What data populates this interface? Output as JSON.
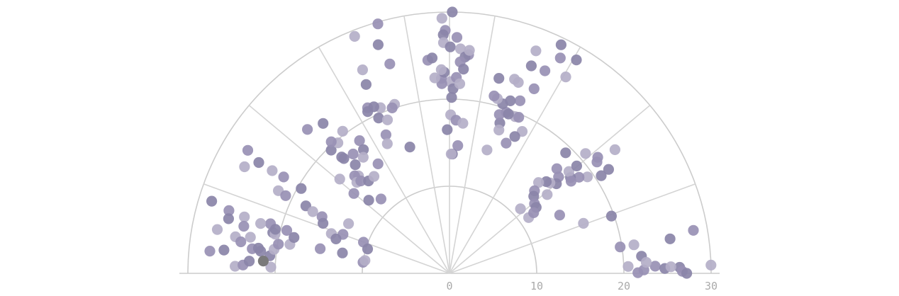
{
  "chart_data": {
    "type": "scatter",
    "coordinate_system": "polar-semicircle",
    "title": "",
    "xlabel": "",
    "ylabel": "",
    "radial_axis": {
      "range": [
        0,
        30
      ],
      "ticks": [
        "0",
        "10",
        "20",
        "30"
      ]
    },
    "angle_range_deg": [
      0,
      180
    ],
    "spokes_deg": [
      20,
      40,
      60,
      80,
      90,
      100,
      120,
      140,
      160
    ],
    "grid": true,
    "colors": {
      "point": "#9890b4",
      "point_dark": "#8a84a8",
      "point_light": "#b4afc8",
      "highlight": "#7a7a7a",
      "grid": "#cccccc",
      "tick_text": "#aaaaaa"
    },
    "series": [
      {
        "points": [
          [
            23.6,
            2.0
          ],
          [
            26.4,
            1.5
          ],
          [
            20.5,
            2.2
          ],
          [
            22.3,
            1.0
          ],
          [
            24.7,
            1.3
          ],
          [
            25.4,
            1.7
          ],
          [
            26.7,
            0.5
          ],
          [
            27.2,
            0.0
          ],
          [
            30.0,
            1.8
          ],
          [
            21.6,
            0.2
          ],
          [
            22.1,
            5.1
          ],
          [
            22.6,
            3.2
          ],
          [
            28.4,
            10.0
          ],
          [
            25.6,
            8.9
          ],
          [
            21.4,
            8.8
          ],
          [
            19.8,
            8.8
          ],
          [
            19.7,
            19.5
          ],
          [
            16.4,
            20.5
          ],
          [
            14.3,
            27.9
          ],
          [
            21.8,
            33.2
          ],
          [
            23.7,
            36.8
          ],
          [
            21.2,
            37.1
          ],
          [
            20.7,
            32.8
          ],
          [
            19.3,
            35.0
          ],
          [
            18.5,
            36.6
          ],
          [
            17.7,
            38.4
          ],
          [
            18.0,
            40.5
          ],
          [
            16.7,
            41.5
          ],
          [
            16.0,
            40.0
          ],
          [
            15.5,
            42.0
          ],
          [
            17.2,
            44.3
          ],
          [
            15.3,
            43.5
          ],
          [
            14.6,
            45.6
          ],
          [
            13.6,
            44.2
          ],
          [
            13.1,
            42.5
          ],
          [
            11.0,
            42.3
          ],
          [
            12.6,
            39.3
          ],
          [
            12.5,
            37.3
          ],
          [
            14.4,
            38.9
          ],
          [
            17.5,
            37.2
          ],
          [
            19.1,
            40.2
          ],
          [
            20.8,
            41.4
          ],
          [
            21.6,
            38.1
          ],
          [
            19.2,
            46.1
          ],
          [
            11.1,
            35.2
          ],
          [
            11.9,
            35.8
          ],
          [
            28.5,
            59.3
          ],
          [
            26.2,
            59.4
          ],
          [
            27.8,
            62.8
          ],
          [
            29.2,
            64.0
          ],
          [
            27.4,
            68.8
          ],
          [
            25.7,
            64.8
          ],
          [
            25.6,
            68.5
          ],
          [
            23.3,
            70.2
          ],
          [
            21.4,
            67.8
          ],
          [
            21.0,
            70.6
          ],
          [
            19.5,
            67.3
          ],
          [
            19.6,
            70.6
          ],
          [
            18.2,
            71.5
          ],
          [
            17.4,
            71.0
          ],
          [
            19.1,
            72.6
          ],
          [
            20.4,
            72.6
          ],
          [
            20.8,
            74.7
          ],
          [
            21.0,
            75.9
          ],
          [
            23.1,
            75.8
          ],
          [
            23.5,
            71.5
          ],
          [
            23.3,
            65.4
          ],
          [
            19.5,
            69.7
          ],
          [
            18.3,
            62.9
          ],
          [
            16.3,
            66.5
          ],
          [
            17.4,
            64.5
          ],
          [
            14.8,
            73.1
          ],
          [
            19.6,
            66.1
          ],
          [
            30.0,
            89.4
          ],
          [
            29.3,
            91.7
          ],
          [
            27.9,
            91.0
          ],
          [
            27.4,
            91.5
          ],
          [
            26.5,
            91.5
          ],
          [
            27.1,
            88.2
          ],
          [
            26.0,
            89.8
          ],
          [
            25.8,
            87.2
          ],
          [
            25.2,
            85.0
          ],
          [
            24.9,
            85.9
          ],
          [
            25.7,
            84.9
          ],
          [
            24.3,
            87.1
          ],
          [
            23.5,
            86.1
          ],
          [
            22.0,
            89.8
          ],
          [
            22.5,
            88.0
          ],
          [
            21.2,
            88.9
          ],
          [
            21.8,
            86.9
          ],
          [
            22.4,
            92.4
          ],
          [
            23.1,
            91.5
          ],
          [
            23.4,
            92.3
          ],
          [
            21.8,
            92.3
          ],
          [
            20.2,
            89.3
          ],
          [
            18.2,
            89.6
          ],
          [
            17.6,
            87.6
          ],
          [
            16.5,
            90.9
          ],
          [
            17.3,
            84.9
          ],
          [
            14.7,
            86.3
          ],
          [
            13.7,
            88.6
          ],
          [
            13.7,
            89.2
          ],
          [
            24.6,
            95.8
          ],
          [
            24.8,
            94.6
          ],
          [
            22.5,
            94.3
          ],
          [
            29.8,
            106.0
          ],
          [
            27.5,
            107.3
          ],
          [
            29.3,
            111.8
          ],
          [
            25.0,
            105.9
          ],
          [
            23.7,
            113.8
          ],
          [
            20.6,
            112.6
          ],
          [
            21.2,
            116.3
          ],
          [
            20.8,
            116.8
          ],
          [
            20.4,
            108.0
          ],
          [
            20.1,
            109.1
          ],
          [
            19.6,
            114.5
          ],
          [
            19.0,
            112.0
          ],
          [
            17.5,
            114.6
          ],
          [
            15.2,
            107.4
          ],
          [
            16.5,
            115.6
          ],
          [
            15.0,
            123.1
          ],
          [
            21.0,
            114.4
          ],
          [
            25.4,
            113.1
          ],
          [
            23.2,
            134.6
          ],
          [
            22.5,
            130.1
          ],
          [
            20.4,
            126.9
          ],
          [
            18.4,
            124.1
          ],
          [
            17.3,
            124.8
          ],
          [
            16.6,
            126.6
          ],
          [
            17.6,
            128.9
          ],
          [
            16.5,
            130.9
          ],
          [
            15.3,
            133.0
          ],
          [
            15.6,
            134.2
          ],
          [
            19.6,
            133.8
          ],
          [
            14.9,
            135.5
          ],
          [
            14.7,
            133.8
          ],
          [
            14.1,
            131.2
          ],
          [
            14.1,
            127.9
          ],
          [
            11.6,
            132.6
          ],
          [
            12.5,
            137.8
          ],
          [
            16.6,
            139.3
          ],
          [
            14.3,
            140.1
          ],
          [
            17.9,
            132.6
          ],
          [
            19.7,
            130.5
          ],
          [
            20.3,
            131.9
          ],
          [
            18.2,
            132.8
          ],
          [
            26.5,
            152.5
          ],
          [
            27.1,
            148.6
          ],
          [
            25.3,
            149.8
          ],
          [
            23.5,
            149.9
          ],
          [
            22.0,
            149.8
          ],
          [
            19.6,
            150.2
          ],
          [
            21.8,
            154.2
          ],
          [
            20.8,
            154.6
          ],
          [
            18.2,
            154.8
          ],
          [
            17.2,
            155.7
          ],
          [
            16.0,
            156.0
          ],
          [
            15.6,
            158.4
          ],
          [
            12.9,
            153.8
          ],
          [
            10.5,
            160.1
          ],
          [
            9.8,
            163.4
          ],
          [
            14.3,
            161.4
          ],
          [
            13.0,
            159.9
          ],
          [
            28.5,
            163.1
          ],
          [
            27.1,
            169.3
          ],
          [
            27.6,
            174.7
          ],
          [
            26.0,
            174.1
          ],
          [
            24.6,
            178.1
          ],
          [
            23.7,
            177.7
          ],
          [
            23.0,
            176.5
          ],
          [
            20.5,
            178.0
          ],
          [
            22.8,
            172.9
          ],
          [
            21.8,
            173.3
          ],
          [
            24.9,
            170.3
          ],
          [
            24.2,
            171.4
          ],
          [
            20.7,
            174.4
          ],
          [
            20.3,
            172.2
          ],
          [
            10.0,
            172.7
          ],
          [
            13.6,
            163.1
          ],
          [
            9.8,
            171.3
          ],
          [
            15.1,
            169.2
          ],
          [
            12.5,
            169.2
          ],
          [
            18.6,
            169.7
          ],
          [
            19.9,
            170.3
          ],
          [
            20.8,
            167.0
          ],
          [
            20.5,
            167.3
          ],
          [
            19.3,
            165.2
          ],
          [
            18.3,
            167.0
          ],
          [
            24.4,
            164.6
          ],
          [
            21.3,
            164.5
          ],
          [
            20.6,
            165.8
          ],
          [
            22.4,
            165.2
          ],
          [
            26.3,
            164.1
          ],
          [
            22.1,
            172.5
          ],
          [
            23.2,
            169.7
          ],
          [
            24.2,
            167.1
          ],
          [
            26.1,
            166.1
          ]
        ]
      }
    ],
    "highlight_point": [
      21.4,
      176.2
    ]
  }
}
